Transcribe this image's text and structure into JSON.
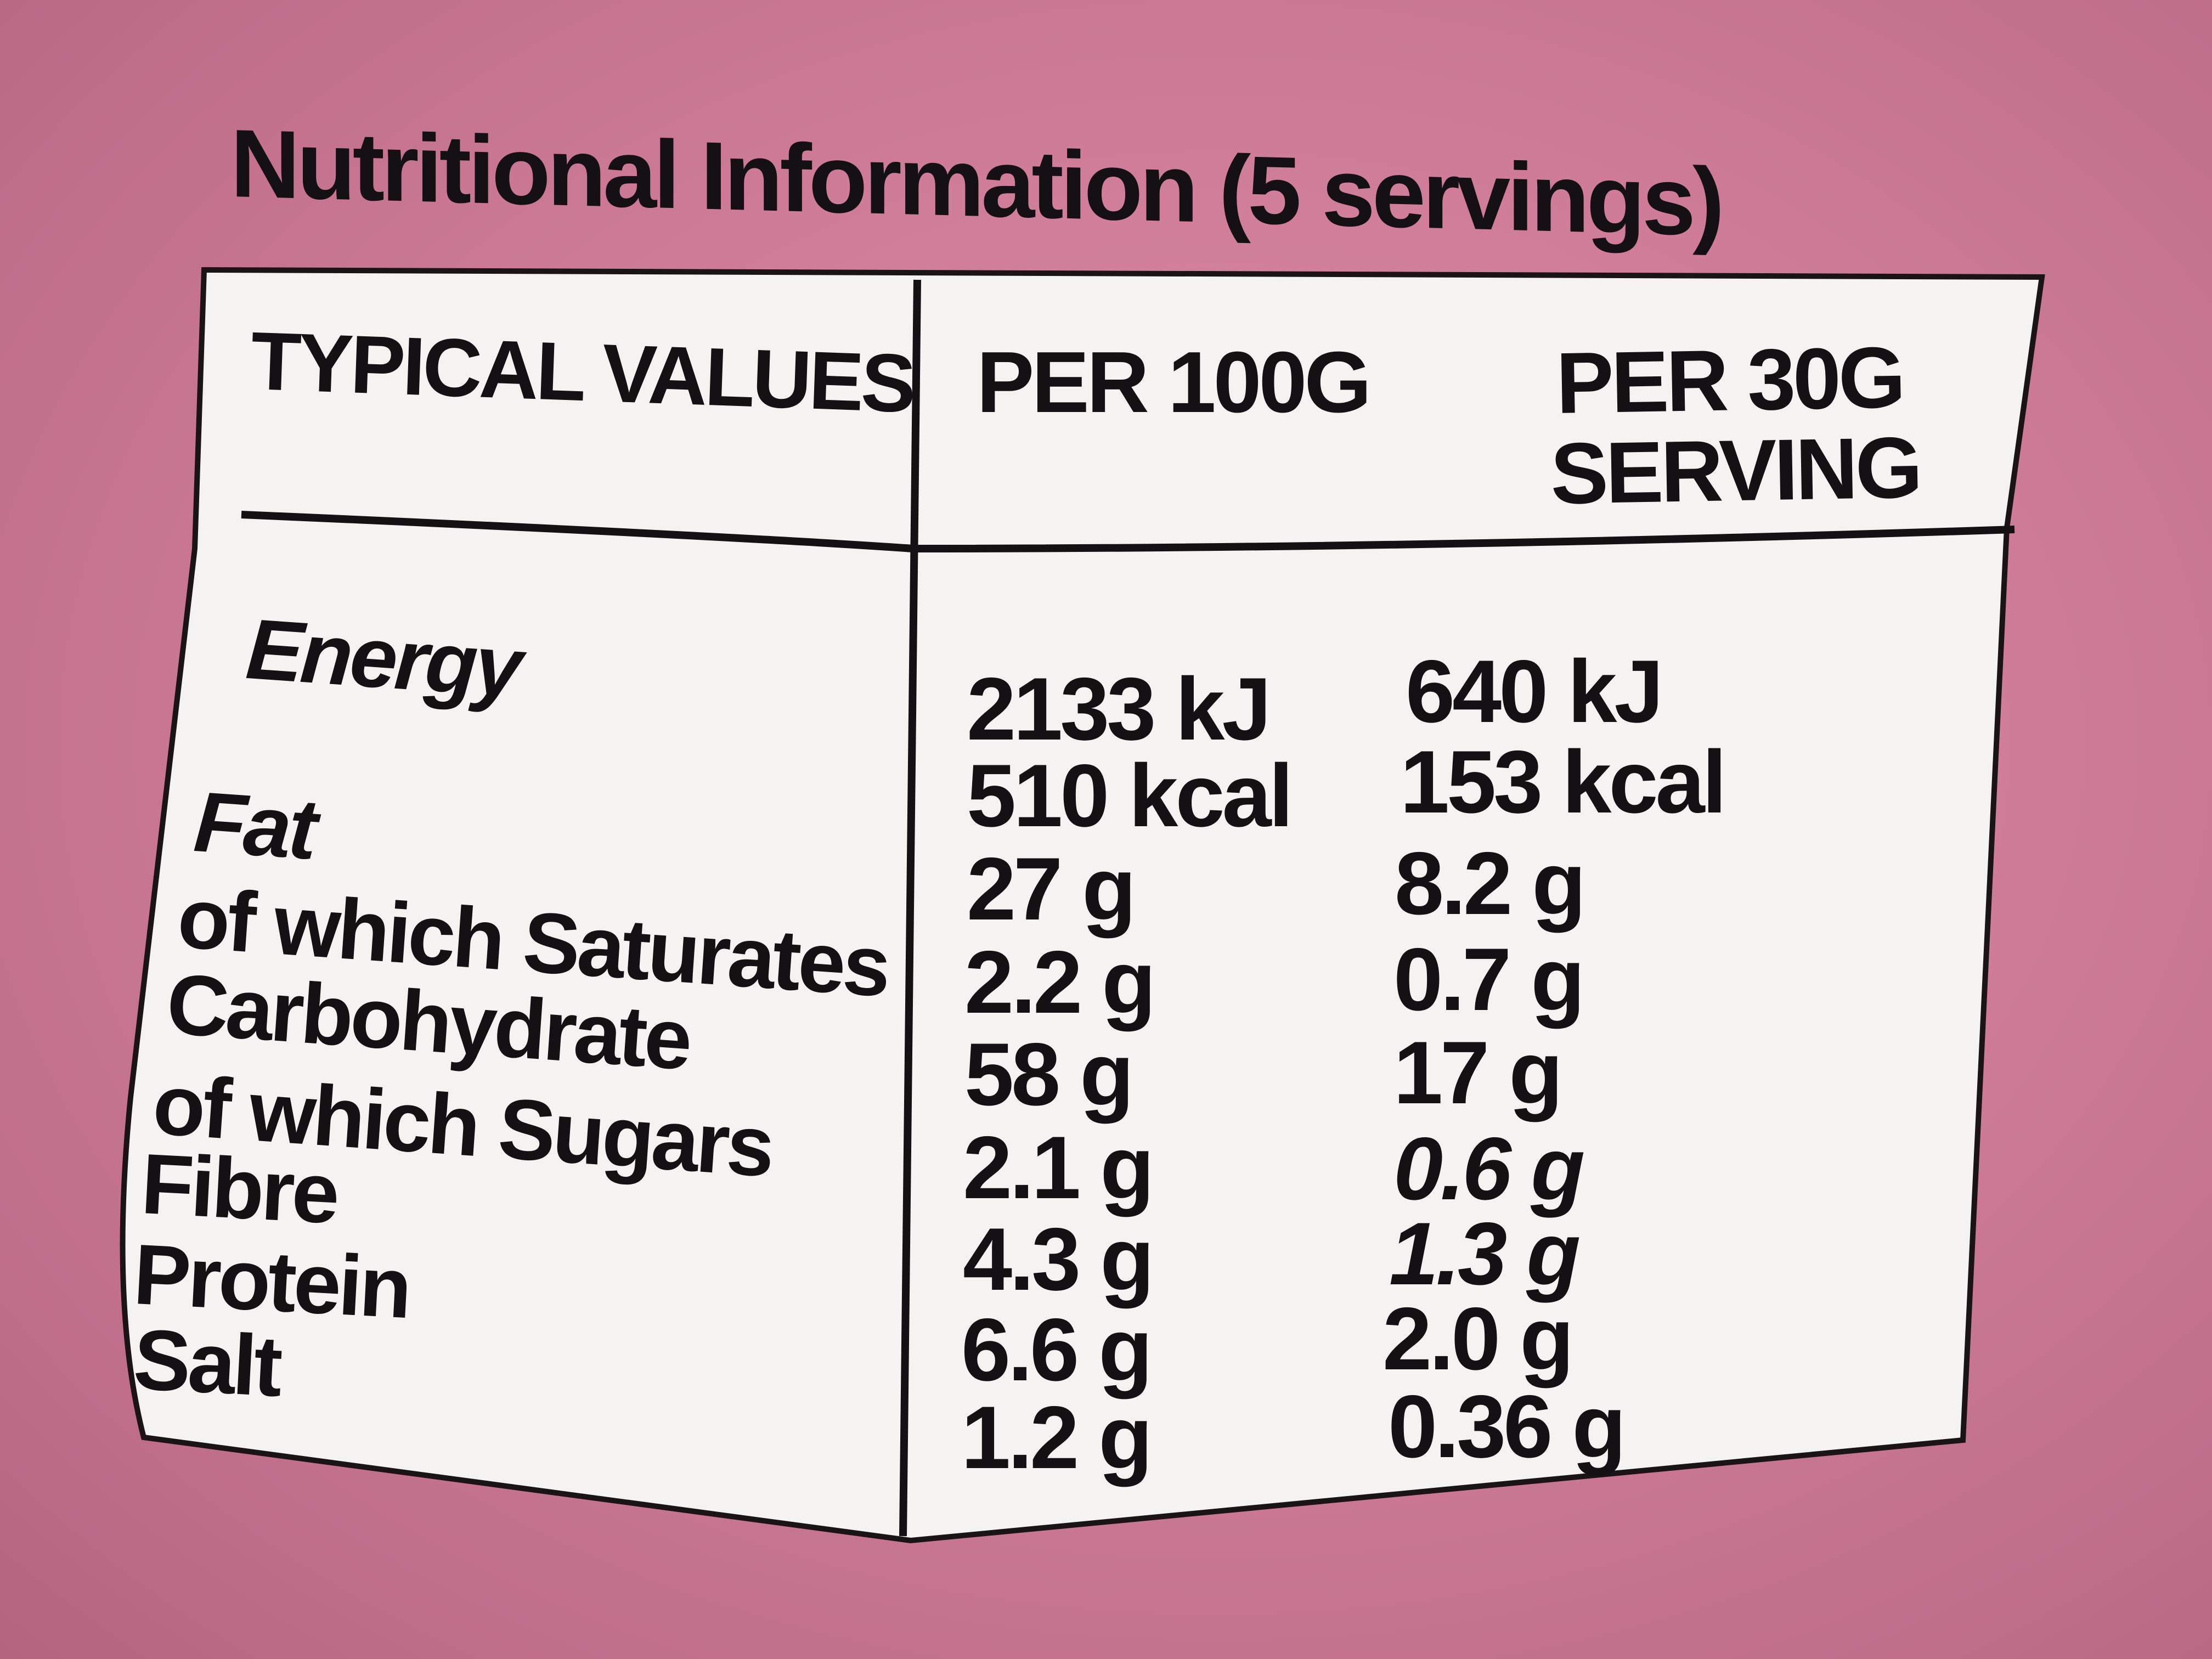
{
  "title": "Nutritional Information (5 servings)",
  "table": {
    "headers": {
      "typical": "TYPICAL VALUES",
      "per100": "PER 100G",
      "per30_line1": "PER 30G",
      "per30_line2": "SERVING"
    },
    "labels": [
      "Energy",
      "Fat",
      "of which Saturates",
      "Carbohydrate",
      "of which Sugars",
      "Fibre",
      "Protein",
      "Salt"
    ],
    "per100": [
      "2133 kJ",
      "510 kcal",
      "27 g",
      "2.2 g",
      "58 g",
      "2.1 g",
      "4.3 g",
      "6.6 g",
      "1.2 g"
    ],
    "per30": [
      "640 kJ",
      "153 kcal",
      "8.2 g",
      "0.7 g",
      "17 g",
      "0.6 g",
      "1.3 g",
      "2.0 g",
      "0.36 g"
    ]
  },
  "colors": {
    "background": "#cf7d99",
    "panel": "#f4f3f1",
    "ink": "#141013"
  }
}
